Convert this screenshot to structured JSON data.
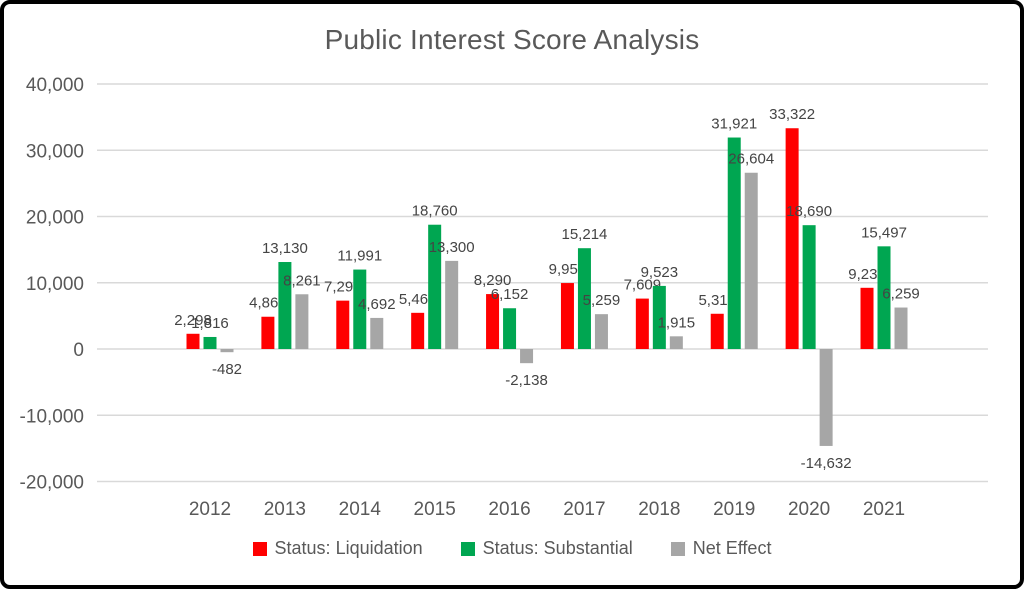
{
  "title": "Public Interest Score Analysis",
  "colors": {
    "liquidation": "#ff0000",
    "substantial": "#00a651",
    "net_effect": "#a6a6a6",
    "text": "#595959",
    "data_label": "#444444",
    "gridline": "#d9d9d9",
    "frame_border": "#000000",
    "background": "#ffffff"
  },
  "chart_data": {
    "type": "bar",
    "title": "Public Interest Score Analysis",
    "categories": [
      "2012",
      "2013",
      "2014",
      "2015",
      "2016",
      "2017",
      "2018",
      "2019",
      "2020",
      "2021"
    ],
    "series": [
      {
        "name": "Status: Liquidation",
        "color": "#ff0000",
        "values": [
          2298,
          4869,
          7299,
          5460,
          8290,
          9955,
          7609,
          5318,
          33322,
          9238
        ]
      },
      {
        "name": "Status: Substantial",
        "color": "#00a651",
        "values": [
          1816,
          13130,
          11991,
          18760,
          6152,
          15214,
          9523,
          31921,
          18690,
          15497
        ]
      },
      {
        "name": "Net Effect",
        "color": "#a6a6a6",
        "values": [
          -482,
          8261,
          4692,
          13300,
          -2138,
          5259,
          1915,
          26604,
          -14632,
          6259
        ]
      }
    ],
    "ylim": [
      -20000,
      40000
    ],
    "ytick_step": 10000,
    "ytick_labels": [
      "-20,000",
      "-10,000",
      "0",
      "10,000",
      "20,000",
      "30,000",
      "40,000"
    ],
    "grid": true,
    "legend_position": "bottom",
    "data_labels_visible": true
  }
}
